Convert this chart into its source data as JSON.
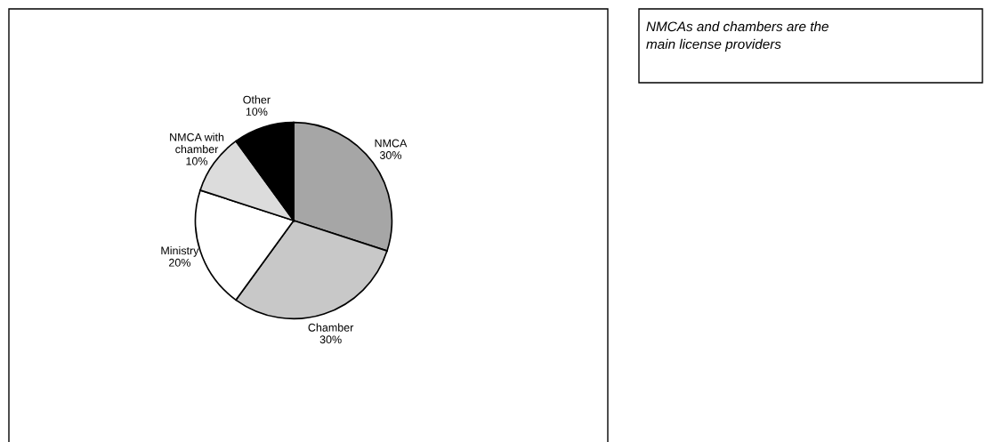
{
  "chart_data": {
    "type": "pie",
    "categories": [
      "NMCA",
      "Chamber",
      "Ministry",
      "NMCA with\nchamber",
      "Other"
    ],
    "values": [
      30,
      30,
      20,
      10,
      10
    ],
    "colors": [
      "#a6a6a6",
      "#c8c8c8",
      "#ffffff",
      "#dcdcdc",
      "#000000"
    ],
    "value_labels": [
      "30%",
      "30%",
      "20%",
      "10%",
      "10%"
    ],
    "annotations": [
      "NMCAs and chambers are the\nmain license providers"
    ]
  }
}
